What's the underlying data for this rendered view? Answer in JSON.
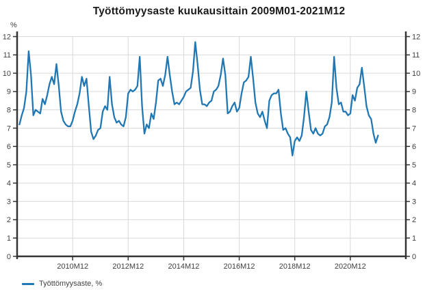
{
  "title": "Työttömyysaste kuukausittain 2009M01-2021M12",
  "y_axis_unit_label": "%",
  "legend": {
    "label": "Työttömyysaste, %",
    "position": "bottom-left"
  },
  "colors": {
    "line": "#1f77b4",
    "axis": "#333333",
    "grid": "#d9d9d9",
    "tick_text": "#404040",
    "background": "#ffffff"
  },
  "chart_data": {
    "type": "line",
    "title": "Työttömyysaste kuukausittain 2009M01-2021M12",
    "xlabel": "",
    "ylabel": "%",
    "x_start": "2009M01",
    "x_end": "2021M12",
    "x_frequency": "monthly",
    "x_axis_span": {
      "from": "2008M12",
      "to": "2022M12"
    },
    "x_tick_labels": [
      "2010M12",
      "2012M12",
      "2014M12",
      "2016M12",
      "2018M12",
      "2020M12"
    ],
    "ylim": [
      0,
      12
    ],
    "y_ticks": [
      0,
      1,
      2,
      3,
      4,
      5,
      6,
      7,
      8,
      9,
      10,
      11,
      12
    ],
    "grid": true,
    "legend_position": "bottom-left",
    "series": [
      {
        "name": "Työttömyysaste, %",
        "color": "#1f77b4",
        "monthly_values_by_year": [
          {
            "year": 2009,
            "values": [
              7.2,
              7.7,
              8.1,
              9.0,
              11.2,
              9.9,
              7.7,
              8.0,
              7.9,
              7.8,
              8.6,
              8.3
            ]
          },
          {
            "year": 2010,
            "values": [
              8.8,
              9.4,
              9.8,
              9.4,
              10.5,
              9.3,
              7.9,
              7.4,
              7.2,
              7.1,
              7.1,
              7.4
            ]
          },
          {
            "year": 2011,
            "values": [
              7.9,
              8.3,
              8.9,
              9.8,
              9.3,
              9.7,
              8.2,
              6.8,
              6.4,
              6.6,
              6.9,
              7.0
            ]
          },
          {
            "year": 2012,
            "values": [
              7.9,
              8.2,
              8.0,
              9.8,
              8.3,
              7.6,
              7.3,
              7.4,
              7.2,
              7.1,
              7.6,
              8.9
            ]
          },
          {
            "year": 2013,
            "values": [
              9.1,
              9.0,
              9.1,
              9.3,
              10.9,
              8.2,
              6.7,
              7.2,
              7.0,
              7.8,
              7.5,
              8.4
            ]
          },
          {
            "year": 2014,
            "values": [
              9.6,
              9.7,
              9.3,
              9.9,
              10.9,
              9.9,
              9.0,
              8.3,
              8.4,
              8.3,
              8.5,
              8.7
            ]
          },
          {
            "year": 2015,
            "values": [
              9.0,
              9.1,
              9.2,
              10.1,
              11.7,
              10.5,
              9.1,
              8.3,
              8.3,
              8.2,
              8.4,
              8.5
            ]
          },
          {
            "year": 2016,
            "values": [
              9.0,
              9.1,
              9.3,
              9.9,
              10.8,
              9.9,
              7.8,
              7.9,
              8.2,
              8.4,
              7.9,
              8.1
            ]
          },
          {
            "year": 2017,
            "values": [
              8.9,
              9.5,
              9.6,
              9.8,
              10.9,
              9.7,
              8.4,
              7.8,
              7.6,
              7.9,
              7.4,
              7.0
            ]
          },
          {
            "year": 2018,
            "values": [
              8.5,
              8.8,
              8.9,
              8.9,
              9.1,
              7.8,
              6.9,
              7.0,
              6.7,
              6.5,
              5.5,
              6.3
            ]
          },
          {
            "year": 2019,
            "values": [
              6.5,
              6.3,
              6.6,
              7.6,
              9.0,
              7.9,
              6.9,
              6.7,
              7.0,
              6.7,
              6.6,
              6.7
            ]
          },
          {
            "year": 2020,
            "values": [
              7.1,
              7.2,
              7.6,
              8.4,
              10.9,
              9.2,
              8.3,
              8.4,
              7.9,
              7.9,
              7.7,
              7.8
            ]
          },
          {
            "year": 2021,
            "values": [
              8.8,
              8.5,
              9.2,
              9.4,
              10.3,
              9.3,
              8.2,
              7.7,
              7.5,
              6.7,
              6.2,
              6.6
            ]
          }
        ]
      }
    ]
  }
}
